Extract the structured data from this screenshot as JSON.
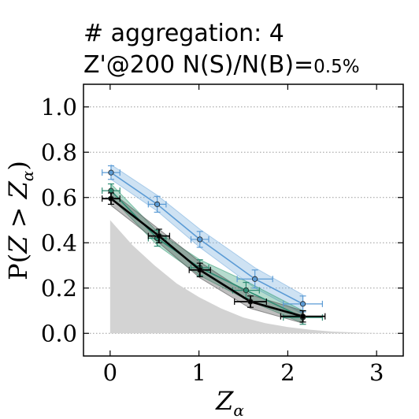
{
  "chart_data": {
    "type": "line",
    "title_lines": [
      "# aggregation: 4",
      "Z'@200 N(S)/N(B)="
    ],
    "title_suffix": "0.5%",
    "xlabel_main": "Z",
    "xlabel_sub": "α",
    "ylabel_prefix": "P(",
    "ylabel_z": "Z",
    "ylabel_gt": " > ",
    "ylabel_sub": "α",
    "ylabel_suffix": ")",
    "xlim": [
      -0.3,
      3.3
    ],
    "ylim": [
      -0.1,
      1.1
    ],
    "xticks": [
      "0",
      "1",
      "2",
      "3"
    ],
    "yticks": [
      "0.0",
      "0.2",
      "0.4",
      "0.6",
      "0.8",
      "1.0"
    ],
    "grid": "horizontal-dotted",
    "background": {
      "name": "background-expectation",
      "color": "#d3d3d3",
      "x": [
        0,
        0.25,
        0.5,
        0.75,
        1.0,
        1.25,
        1.5,
        1.75,
        2.0,
        2.25,
        2.5,
        2.75,
        3.0,
        3.3
      ],
      "y": [
        0.5,
        0.39,
        0.3,
        0.22,
        0.16,
        0.11,
        0.07,
        0.045,
        0.028,
        0.016,
        0.008,
        0.004,
        0.001,
        0.0
      ]
    },
    "series": [
      {
        "color": "#5b9bd5",
        "band_color": "#7fb2e0",
        "x": [
          0.01,
          0.53,
          1.01,
          1.63,
          2.17
        ],
        "y": [
          0.71,
          0.57,
          0.415,
          0.24,
          0.13
        ],
        "xerr": [
          0.1,
          0.1,
          0.1,
          0.2,
          0.22
        ],
        "yerr": [
          0.03,
          0.035,
          0.035,
          0.04,
          0.035
        ],
        "band_low": [
          0.68,
          0.54,
          0.38,
          0.2,
          0.085
        ],
        "band_high": [
          0.745,
          0.61,
          0.46,
          0.29,
          0.17
        ]
      },
      {
        "color": "#2e8b72",
        "band_color": "#3fa37d",
        "x": [
          0.01,
          0.53,
          1.01,
          1.53,
          2.17
        ],
        "y": [
          0.63,
          0.42,
          0.29,
          0.19,
          0.07
        ],
        "xerr": [
          0.1,
          0.1,
          0.1,
          0.15,
          0.22
        ],
        "yerr": [
          0.03,
          0.035,
          0.035,
          0.035,
          0.03
        ],
        "band_low": [
          0.6,
          0.39,
          0.255,
          0.15,
          0.045
        ],
        "band_high": [
          0.66,
          0.45,
          0.325,
          0.23,
          0.1
        ]
      },
      {
        "color": "#000000",
        "band_color": "#555555",
        "x": [
          0.01,
          0.55,
          1.01,
          1.58,
          2.17
        ],
        "y": [
          0.595,
          0.43,
          0.28,
          0.14,
          0.075
        ],
        "xerr": [
          0.1,
          0.12,
          0.12,
          0.18,
          0.25
        ],
        "yerr": [
          0.025,
          0.03,
          0.03,
          0.025,
          0.025
        ],
        "band_low": [
          0.565,
          0.4,
          0.245,
          0.11,
          0.045
        ],
        "band_high": [
          0.625,
          0.46,
          0.315,
          0.17,
          0.1
        ]
      }
    ]
  }
}
